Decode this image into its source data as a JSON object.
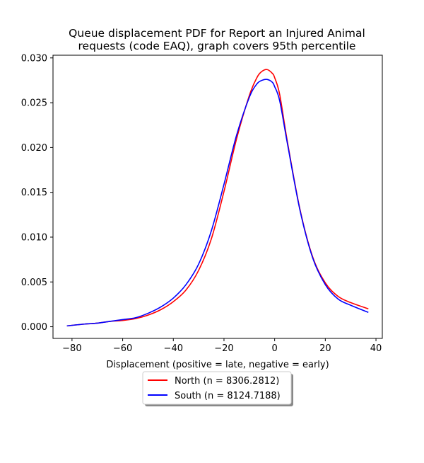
{
  "chart_data": {
    "type": "line",
    "title": "Queue displacement PDF for Report an Injured Animal requests (code EAQ), graph covers 95th percentile",
    "title_lines": [
      "Queue displacement PDF for Report an Injured Animal",
      "requests (code EAQ), graph covers 95th percentile"
    ],
    "xlabel": "Displacement (positive = late, negative = early)",
    "ylabel": "",
    "xlim": [
      -87.5,
      42.5
    ],
    "ylim": [
      -0.0013,
      0.0303
    ],
    "xticks": [
      -80,
      -60,
      -40,
      -20,
      0,
      20,
      40
    ],
    "xtick_labels": [
      "−80",
      "−60",
      "−40",
      "−20",
      "0",
      "20",
      "40"
    ],
    "yticks": [
      0.0,
      0.005,
      0.01,
      0.015,
      0.02,
      0.025,
      0.03
    ],
    "ytick_labels": [
      "0.000",
      "0.005",
      "0.010",
      "0.015",
      "0.020",
      "0.025",
      "0.030"
    ],
    "grid": false,
    "legend_position": "below-center",
    "series": [
      {
        "name": "North (n = 8306.2812)",
        "color": "#ff0000",
        "x": [
          -82,
          -75,
          -70,
          -65,
          -60,
          -55,
          -50,
          -45,
          -40,
          -35,
          -30,
          -25,
          -20,
          -15,
          -10,
          -7,
          -5,
          -3,
          -1,
          0,
          2,
          5,
          10,
          15,
          20,
          25,
          30,
          37
        ],
        "y": [
          0.0001,
          0.0003,
          0.0004,
          0.0006,
          0.0007,
          0.0009,
          0.0013,
          0.0019,
          0.0028,
          0.0041,
          0.0063,
          0.0098,
          0.0151,
          0.021,
          0.0258,
          0.0278,
          0.0285,
          0.0287,
          0.0283,
          0.0278,
          0.0259,
          0.0207,
          0.0131,
          0.0078,
          0.0049,
          0.0034,
          0.0027,
          0.002
        ]
      },
      {
        "name": "South (n = 8124.7188)",
        "color": "#0000ff",
        "x": [
          -82,
          -75,
          -70,
          -65,
          -60,
          -55,
          -50,
          -45,
          -40,
          -35,
          -30,
          -25,
          -20,
          -15,
          -10,
          -7,
          -5,
          -3,
          -1,
          0,
          2,
          5,
          10,
          15,
          20,
          25,
          30,
          37
        ],
        "y": [
          0.0001,
          0.0003,
          0.0004,
          0.0006,
          0.0008,
          0.001,
          0.0015,
          0.0022,
          0.0032,
          0.0047,
          0.007,
          0.0107,
          0.0159,
          0.0214,
          0.0256,
          0.0271,
          0.0275,
          0.0276,
          0.0273,
          0.0268,
          0.0252,
          0.0205,
          0.013,
          0.0077,
          0.0047,
          0.0031,
          0.0024,
          0.0016
        ]
      }
    ]
  }
}
